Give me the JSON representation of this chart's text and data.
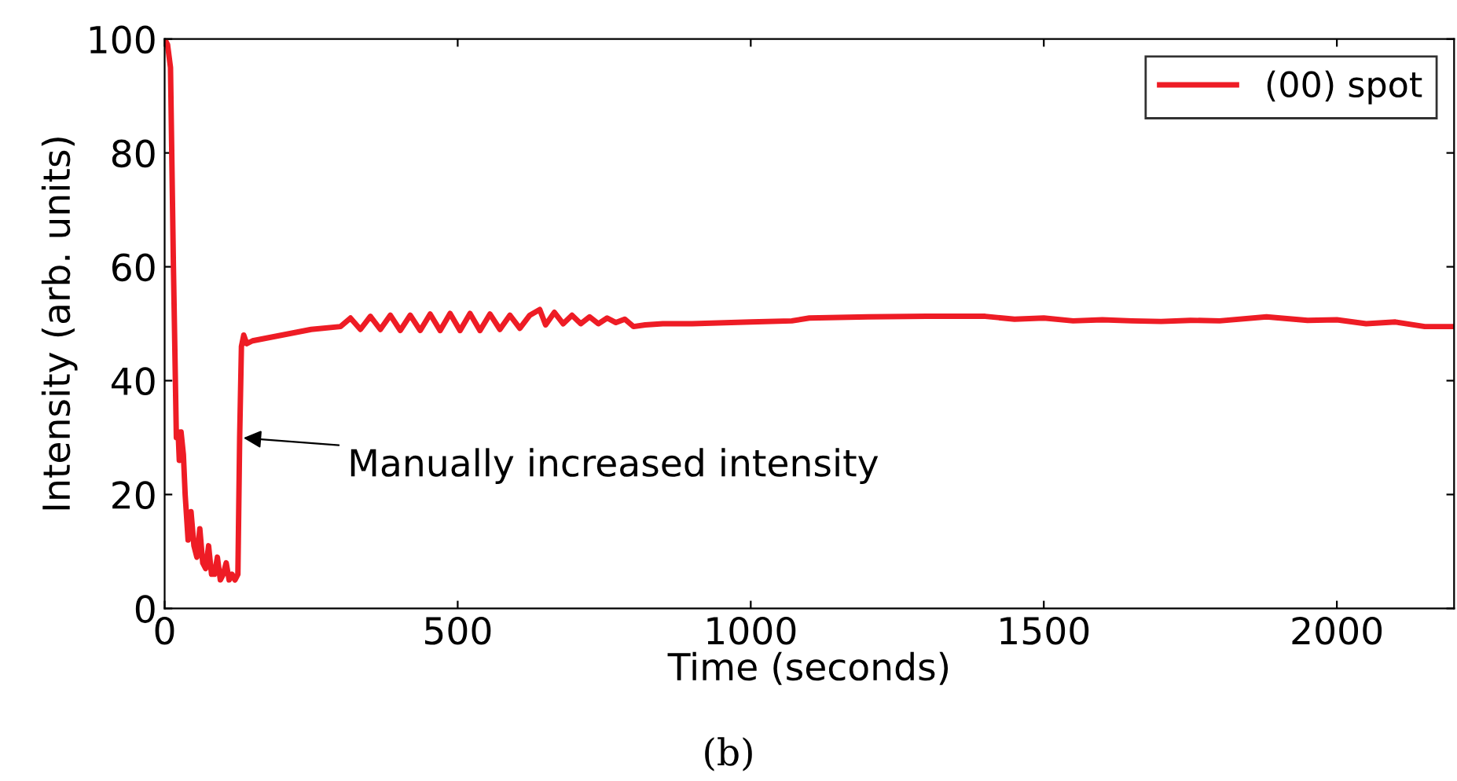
{
  "chart_data": {
    "type": "line",
    "xlabel": "Time (seconds)",
    "ylabel": "Intensity (arb. units)",
    "xlim": [
      0,
      2200
    ],
    "ylim": [
      0,
      100
    ],
    "xticks": [
      0,
      500,
      1000,
      1500,
      2000
    ],
    "yticks": [
      0,
      20,
      40,
      60,
      80,
      100
    ],
    "grid": false,
    "legend": "top right",
    "marker": "none",
    "line_style": "solid",
    "annotations": [
      {
        "text": "Manually increased intensity",
        "x": 127,
        "y": 30
      },
      "(b)"
    ],
    "series": [
      {
        "name": "(00) spot",
        "color": "#ee1c25",
        "x": [
          0,
          5,
          10,
          15,
          20,
          23,
          25,
          28,
          32,
          35,
          40,
          45,
          50,
          55,
          60,
          65,
          70,
          75,
          80,
          85,
          90,
          95,
          100,
          105,
          110,
          115,
          120,
          125,
          128,
          131,
          135,
          140,
          150,
          200,
          250,
          300,
          317,
          334,
          351,
          368,
          385,
          402,
          419,
          436,
          453,
          470,
          487,
          504,
          521,
          538,
          555,
          572,
          589,
          606,
          623,
          640,
          650,
          665,
          680,
          695,
          710,
          725,
          740,
          755,
          770,
          785,
          800,
          820,
          850,
          900,
          1000,
          1070,
          1100,
          1200,
          1300,
          1400,
          1450,
          1500,
          1550,
          1600,
          1650,
          1700,
          1750,
          1800,
          1880,
          1950,
          2000,
          2050,
          2100,
          2150,
          2200
        ],
        "values": [
          100,
          99,
          95,
          60,
          30,
          31,
          26,
          31,
          27,
          20,
          12,
          17,
          11,
          9,
          14,
          8,
          7,
          11,
          6,
          6,
          9,
          5,
          6,
          8,
          5,
          6,
          5,
          6,
          30,
          46,
          48,
          46.5,
          47,
          48,
          49,
          49.5,
          51,
          49,
          51.3,
          49,
          51.5,
          48.8,
          51.5,
          48.8,
          51.7,
          48.8,
          51.8,
          48.8,
          51.8,
          48.8,
          51.7,
          49,
          51.5,
          49.2,
          51.5,
          52.5,
          49.8,
          52,
          50,
          51.5,
          50,
          51.2,
          50,
          51,
          50.2,
          50.8,
          49.5,
          49.8,
          50,
          50,
          50.3,
          50.5,
          51,
          51.2,
          51.3,
          51.3,
          50.8,
          51,
          50.5,
          50.7,
          50.5,
          50.4,
          50.6,
          50.5,
          51.2,
          50.6,
          50.7,
          50,
          50.3,
          49.5,
          49.5
        ]
      }
    ]
  }
}
